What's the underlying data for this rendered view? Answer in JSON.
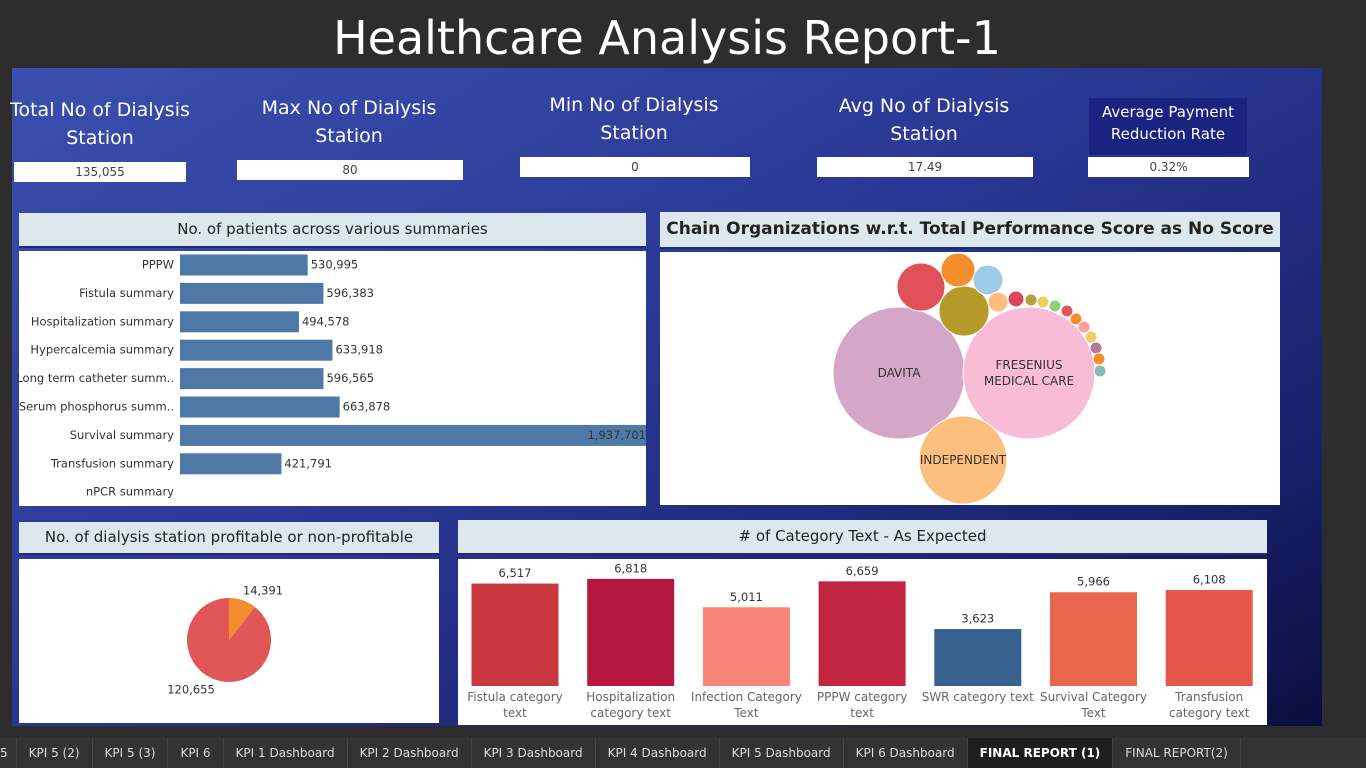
{
  "title": "Healthcare Analysis Report-1",
  "kpis": [
    {
      "label": "Total No of Dialysis Station",
      "value": "135,055"
    },
    {
      "label": "Max No of Dialysis Station",
      "value": "80"
    },
    {
      "label": "Min No of Dialysis Station",
      "value": "0"
    },
    {
      "label": "Avg No of Dialysis Station",
      "value": "17.49"
    },
    {
      "label": "Average Payment Reduction Rate",
      "value": "0.32%"
    }
  ],
  "chart_data": [
    {
      "type": "hbar",
      "title": "No. of patients across various summaries",
      "categories": [
        "PPPW",
        "Fistula summary",
        "Hospitalization summary",
        "Hypercalcemia summary",
        "Long term catheter summ..",
        "Serum phosphorus summ..",
        "Survival summary",
        "Transfusion summary",
        "nPCR summary"
      ],
      "values": [
        530995,
        596383,
        494578,
        633918,
        596565,
        663878,
        1937701,
        421791,
        null
      ],
      "value_labels": [
        "530,995",
        "596,383",
        "494,578",
        "633,918",
        "596,565",
        "663,878",
        "1,937,701",
        "421,791",
        null
      ],
      "color": "#4e79a7",
      "xlim": [
        0,
        1937701
      ]
    },
    {
      "type": "bubble",
      "title": "Chain Organizations w.r.t. Total Performance Score as No Score",
      "series": [
        {
          "name": "DAVITA",
          "value": 4356,
          "color": "#d4a6c8"
        },
        {
          "name": "FRESENIUS MEDICAL CARE",
          "value": 4356,
          "color": "#f8bcd6"
        },
        {
          "name": "INDEPENDENT",
          "value": 1936,
          "color": "#fdbf7e"
        },
        {
          "name": null,
          "value": 576,
          "color": "#e05158"
        },
        {
          "name": null,
          "value": 625,
          "color": "#b59a2b"
        },
        {
          "name": null,
          "value": 289,
          "color": "#f28e2b"
        },
        {
          "name": null,
          "value": 225,
          "color": "#a0cbe8"
        },
        {
          "name": null,
          "value": 100,
          "color": "#ffbe7d"
        },
        {
          "name": null,
          "value": 64,
          "color": "#d9485d"
        },
        {
          "name": null,
          "value": 36,
          "color": "#b5a13a"
        },
        {
          "name": null,
          "value": 36,
          "color": "#f1ce63"
        },
        {
          "name": null,
          "value": 36,
          "color": "#8cd17d"
        },
        {
          "name": null,
          "value": 36,
          "color": "#e15759"
        },
        {
          "name": null,
          "value": 36,
          "color": "#f28e2b"
        },
        {
          "name": null,
          "value": 36,
          "color": "#ff9d9a"
        },
        {
          "name": null,
          "value": 36,
          "color": "#f1ce63"
        },
        {
          "name": null,
          "value": 36,
          "color": "#b07aa1"
        },
        {
          "name": null,
          "value": 36,
          "color": "#f28e2b"
        },
        {
          "name": null,
          "value": 36,
          "color": "#86bcb6"
        }
      ]
    },
    {
      "type": "pie",
      "title": "No. of dialysis station profitable or non-profitable",
      "values": [
        14391,
        120655
      ],
      "value_labels": [
        "14,391",
        "120,655"
      ],
      "colors": [
        "#f28e2b",
        "#e15759"
      ]
    },
    {
      "type": "bar",
      "title": "# of Category Text - As Expected",
      "categories": [
        "Fistula category text",
        "Hospitalization category text",
        "Infection Category Text",
        "PPPW category text",
        "SWR category text",
        "Survival Category Text",
        "Transfusion category text"
      ],
      "values": [
        6517,
        6818,
        5011,
        6659,
        3623,
        5966,
        6108
      ],
      "value_labels": [
        "6,517",
        "6,818",
        "5,011",
        "6,659",
        "3,623",
        "5,966",
        "6,108"
      ],
      "colors": [
        "#c8383e",
        "#b5173e",
        "#f8877a",
        "#c2253f",
        "#36608e",
        "#e8674c",
        "#e6574a"
      ],
      "ylim": [
        0,
        7000
      ]
    }
  ],
  "tabs": [
    "5",
    "KPI 5 (2)",
    "KPI 5 (3)",
    "KPI 6",
    "KPI 1 Dashboard",
    "KPI 2 Dashboard",
    "KPI 3 Dashboard",
    "KPI 4 Dashboard",
    "KPI 5 Dashboard",
    "KPI 6 Dashboard",
    "FINAL REPORT (1)",
    "FINAL REPORT(2)"
  ],
  "active_tab": 10
}
